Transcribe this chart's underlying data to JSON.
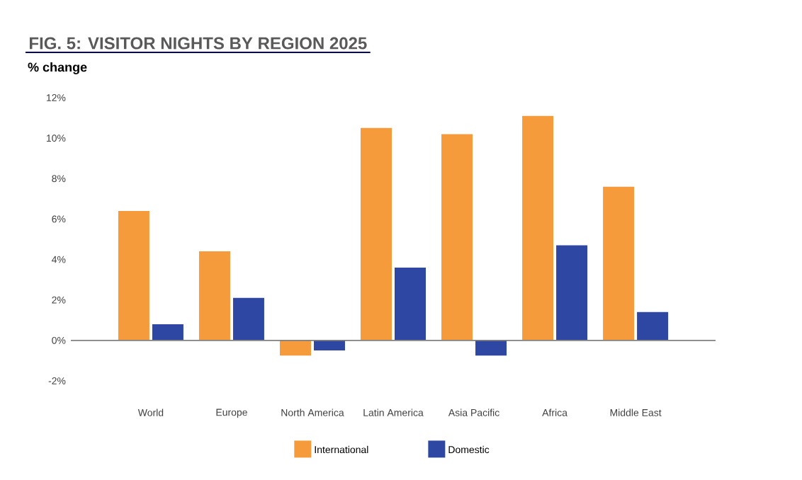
{
  "chart_data": {
    "type": "bar",
    "title": "FIG. 5: VISITOR NIGHTS BY REGION 2025",
    "ylabel": "% change",
    "categories": [
      "World",
      "Europe",
      "North America",
      "Latin America",
      "Asia Pacific",
      "Africa",
      "Middle East"
    ],
    "series": [
      {
        "name": "International",
        "color": "#f59b3b",
        "values": [
          6.4,
          4.4,
          -0.75,
          10.5,
          10.2,
          11.1,
          7.6
        ]
      },
      {
        "name": "Domestic",
        "color": "#2e47a3",
        "values": [
          0.8,
          2.1,
          -0.5,
          3.6,
          -0.75,
          4.7,
          1.4
        ]
      }
    ],
    "ylim": [
      -2,
      12
    ],
    "yticks": [
      {
        "value": -2,
        "label": "-2%"
      },
      {
        "value": 0,
        "label": "0%"
      },
      {
        "value": 2,
        "label": "2%"
      },
      {
        "value": 4,
        "label": "4%"
      },
      {
        "value": 6,
        "label": "6%"
      },
      {
        "value": 8,
        "label": "8%"
      },
      {
        "value": 10,
        "label": "10%"
      },
      {
        "value": 12,
        "label": "12%"
      }
    ],
    "legend": "bottom"
  }
}
